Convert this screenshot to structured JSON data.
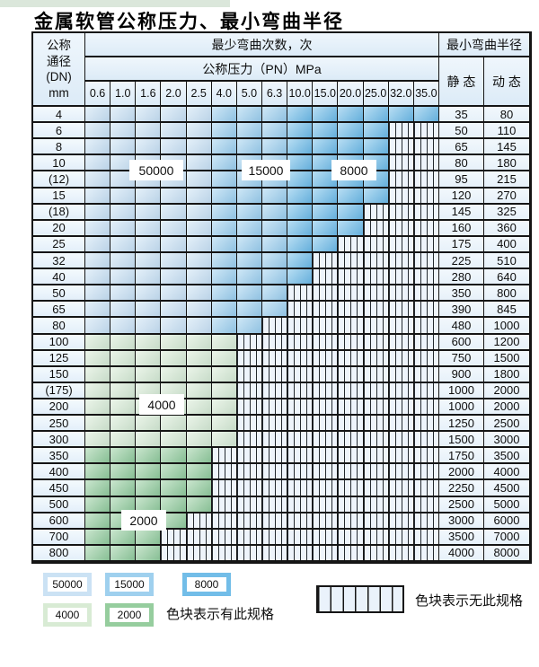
{
  "page": {
    "title": "金属软管公称压力、最小弯曲半径"
  },
  "table": {
    "corner_lines": [
      "公称",
      "通径",
      "(DN)",
      "mm"
    ],
    "bend_cycles_header": "最少弯曲次数，次",
    "pressure_header": "公称压力（PN）MPa",
    "radius_header": "最小弯曲半径",
    "static_header": "静 态",
    "dynamic_header": "动 态",
    "pressure_columns": [
      "0.6",
      "1.0",
      "1.6",
      "2.0",
      "2.5",
      "4.0",
      "5.0",
      "6.3",
      "10.0",
      "15.0",
      "20.0",
      "25.0",
      "32.0",
      "35.0"
    ],
    "rows": [
      {
        "dn": "4",
        "last_col": 13,
        "static": "35",
        "dynamic": "80"
      },
      {
        "dn": "6",
        "last_col": 11,
        "static": "50",
        "dynamic": "110"
      },
      {
        "dn": "8",
        "last_col": 11,
        "static": "65",
        "dynamic": "145"
      },
      {
        "dn": "10",
        "last_col": 11,
        "static": "80",
        "dynamic": "180"
      },
      {
        "dn": "(12)",
        "last_col": 11,
        "static": "95",
        "dynamic": "215"
      },
      {
        "dn": "15",
        "last_col": 11,
        "static": "120",
        "dynamic": "270"
      },
      {
        "dn": "(18)",
        "last_col": 10,
        "static": "145",
        "dynamic": "325"
      },
      {
        "dn": "20",
        "last_col": 10,
        "static": "160",
        "dynamic": "360"
      },
      {
        "dn": "25",
        "last_col": 9,
        "static": "175",
        "dynamic": "400"
      },
      {
        "dn": "32",
        "last_col": 8,
        "static": "225",
        "dynamic": "510"
      },
      {
        "dn": "40",
        "last_col": 8,
        "static": "280",
        "dynamic": "640"
      },
      {
        "dn": "50",
        "last_col": 7,
        "static": "350",
        "dynamic": "800"
      },
      {
        "dn": "65",
        "last_col": 7,
        "static": "390",
        "dynamic": "845"
      },
      {
        "dn": "80",
        "last_col": 6,
        "static": "480",
        "dynamic": "1000"
      },
      {
        "dn": "100",
        "last_col": 5,
        "static": "600",
        "dynamic": "1200"
      },
      {
        "dn": "125",
        "last_col": 5,
        "static": "750",
        "dynamic": "1500"
      },
      {
        "dn": "150",
        "last_col": 5,
        "static": "900",
        "dynamic": "1800"
      },
      {
        "dn": "(175)",
        "last_col": 5,
        "static": "1000",
        "dynamic": "2000"
      },
      {
        "dn": "200",
        "last_col": 5,
        "static": "1000",
        "dynamic": "2000"
      },
      {
        "dn": "250",
        "last_col": 5,
        "static": "1250",
        "dynamic": "2500"
      },
      {
        "dn": "300",
        "last_col": 5,
        "static": "1500",
        "dynamic": "3000"
      },
      {
        "dn": "350",
        "last_col": 4,
        "static": "1750",
        "dynamic": "3500"
      },
      {
        "dn": "400",
        "last_col": 4,
        "static": "2000",
        "dynamic": "4000"
      },
      {
        "dn": "450",
        "last_col": 4,
        "static": "2250",
        "dynamic": "4500"
      },
      {
        "dn": "500",
        "last_col": 4,
        "static": "2500",
        "dynamic": "5000"
      },
      {
        "dn": "600",
        "last_col": 3,
        "static": "3000",
        "dynamic": "6000"
      },
      {
        "dn": "700",
        "last_col": 2,
        "static": "3500",
        "dynamic": "7000"
      },
      {
        "dn": "800",
        "last_col": 2,
        "static": "4000",
        "dynamic": "8000"
      }
    ]
  },
  "zones": {
    "blue_row_range": [
      0,
      13
    ],
    "blue": [
      {
        "label": "50000",
        "col_start": 0,
        "col_end": 4,
        "color": "#cbe2f4"
      },
      {
        "label": "15000",
        "col_start": 5,
        "col_end": 7,
        "color": "#9fd0ee"
      },
      {
        "label": "8000",
        "col_start": 8,
        "col_end": 13,
        "color": "#72bde8"
      }
    ],
    "green": [
      {
        "label": "4000",
        "row_start": 14,
        "row_end": 20,
        "color": "#d8ebd4"
      },
      {
        "label": "2000",
        "row_start": 21,
        "row_end": 27,
        "color": "#96cd9e"
      }
    ]
  },
  "legend": {
    "items": [
      {
        "label": "50000",
        "color": "#cbe2f4"
      },
      {
        "label": "15000",
        "color": "#9fd0ee"
      },
      {
        "label": "8000",
        "color": "#72bde8"
      },
      {
        "label": "4000",
        "color": "#d8ebd4"
      },
      {
        "label": "2000",
        "color": "#96cd9e"
      }
    ],
    "has_spec_text": "色块表示有此规格",
    "no_spec_text": "色块表示无此规格"
  },
  "chart_data": {
    "type": "table",
    "title": "金属软管公称压力、最小弯曲半径",
    "pressure_columns_PN_MPa": [
      0.6,
      1.0,
      1.6,
      2.0,
      2.5,
      4.0,
      5.0,
      6.3,
      10.0,
      15.0,
      20.0,
      25.0,
      32.0,
      35.0
    ],
    "bend_cycles_zones": [
      {
        "cycles": 50000,
        "applies": "PN 0.6–2.5, small DN rows"
      },
      {
        "cycles": 15000,
        "applies": "PN 4.0–6.3, small DN rows"
      },
      {
        "cycles": 8000,
        "applies": "PN 10.0–35.0, small DN rows"
      },
      {
        "cycles": 4000,
        "applies": "DN 100–300"
      },
      {
        "cycles": 2000,
        "applies": "DN 350–800"
      }
    ],
    "row_format": [
      "dn_mm",
      "max_available_PN_MPa",
      "min_static_radius_mm",
      "min_dynamic_radius_mm"
    ],
    "rows": [
      [
        "4",
        35,
        35,
        80
      ],
      [
        "6",
        25,
        50,
        110
      ],
      [
        "8",
        25,
        65,
        145
      ],
      [
        "10",
        25,
        80,
        180
      ],
      [
        "(12)",
        25,
        95,
        215
      ],
      [
        "15",
        25,
        120,
        270
      ],
      [
        "(18)",
        20,
        145,
        325
      ],
      [
        "20",
        20,
        160,
        360
      ],
      [
        "25",
        15,
        175,
        400
      ],
      [
        "32",
        10,
        225,
        510
      ],
      [
        "40",
        10,
        280,
        640
      ],
      [
        "50",
        6.3,
        350,
        800
      ],
      [
        "65",
        6.3,
        390,
        845
      ],
      [
        "80",
        5,
        480,
        1000
      ],
      [
        "100",
        4,
        600,
        1200
      ],
      [
        "125",
        4,
        750,
        1500
      ],
      [
        "150",
        4,
        900,
        1800
      ],
      [
        "(175)",
        4,
        1000,
        2000
      ],
      [
        "200",
        4,
        1000,
        2000
      ],
      [
        "250",
        4,
        1250,
        2500
      ],
      [
        "300",
        4,
        1500,
        3000
      ],
      [
        "350",
        2.5,
        1750,
        3500
      ],
      [
        "400",
        2.5,
        2000,
        4000
      ],
      [
        "450",
        2.5,
        2250,
        4500
      ],
      [
        "500",
        2.5,
        2500,
        5000
      ],
      [
        "600",
        2,
        3000,
        6000
      ],
      [
        "700",
        1.6,
        3500,
        7000
      ],
      [
        "800",
        1.6,
        4000,
        8000
      ]
    ],
    "legend_note_available": "色块表示有此规格",
    "legend_note_unavailable": "色块表示无此规格"
  }
}
